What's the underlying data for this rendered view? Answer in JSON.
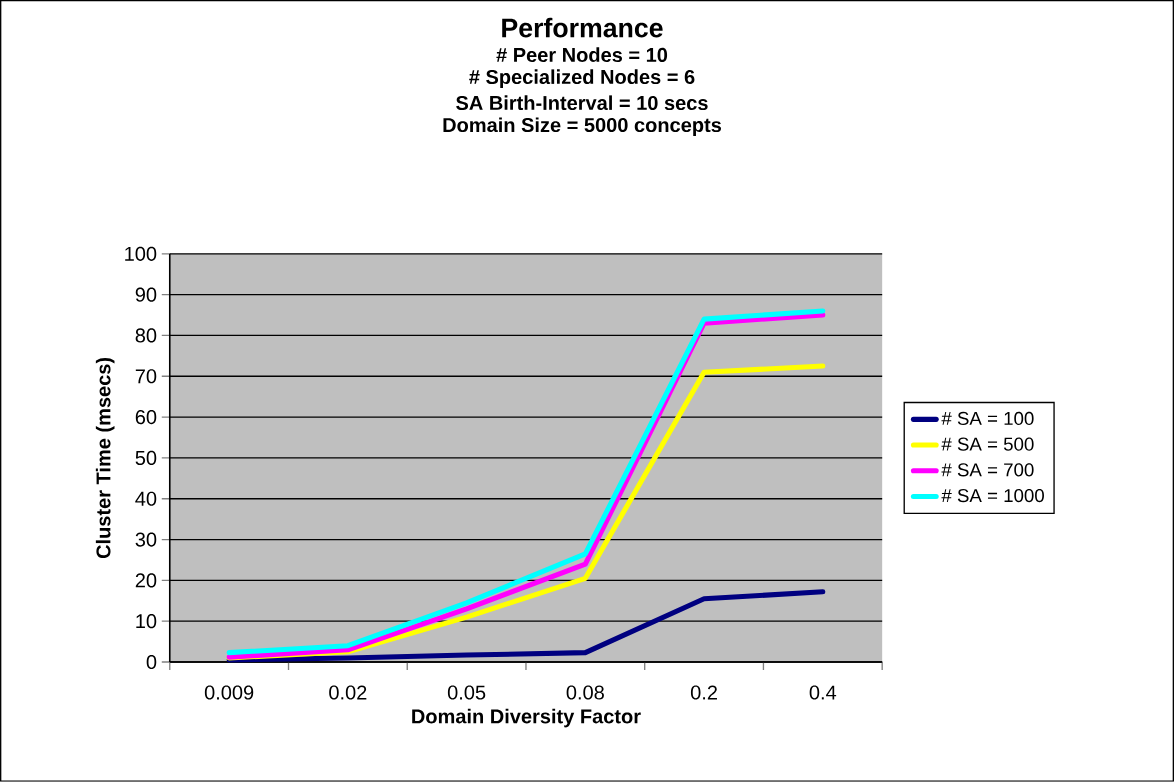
{
  "chart_data": {
    "type": "line",
    "title": "Performance",
    "annotations": [
      "# Peer Nodes = 10",
      "# Specialized Nodes = 6",
      "SA Birth-Interval = 10 secs",
      "Domain Size = 5000 concepts"
    ],
    "xlabel": "Domain Diversity Factor",
    "ylabel": "Cluster Time (msecs)",
    "categories": [
      "0.009",
      "0.02",
      "0.05",
      "0.08",
      "0.2",
      "0.4"
    ],
    "series": [
      {
        "name": "# SA = 100",
        "color": "#000080",
        "values": [
          0.5,
          1,
          1.7,
          2.3,
          15.5,
          17.2
        ]
      },
      {
        "name": "# SA = 500",
        "color": "#ffff00",
        "values": [
          1,
          2.5,
          11,
          20.5,
          71,
          72.5
        ]
      },
      {
        "name": "# SA = 700",
        "color": "#ff00ff",
        "values": [
          1.2,
          3,
          13,
          24,
          83,
          85
        ]
      },
      {
        "name": "# SA = 1000",
        "color": "#00ffff",
        "values": [
          2.3,
          4,
          14.5,
          26.5,
          84,
          86
        ]
      }
    ],
    "ylim": [
      0,
      100
    ],
    "yticks": [
      0,
      10,
      20,
      30,
      40,
      50,
      60,
      70,
      80,
      90,
      100
    ],
    "grid": "y",
    "legend": "right",
    "marker": "none",
    "line_style": "solid"
  }
}
